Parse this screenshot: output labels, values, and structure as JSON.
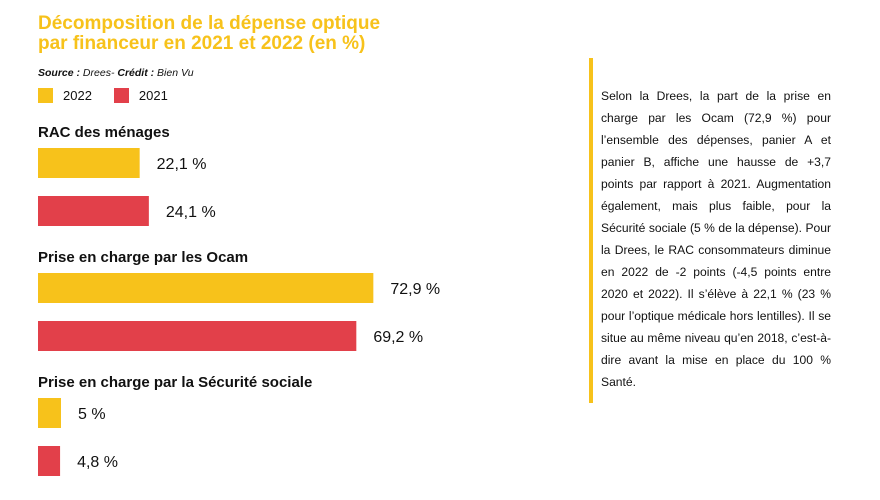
{
  "chart_data": {
    "type": "bar",
    "title_lines": [
      "Décomposition de la dépense optique",
      "par financeur en 2021 et 2022 (en %)"
    ],
    "source_label": "Source :",
    "source_value": " Drees- ",
    "credit_label": "Crédit :",
    "credit_value": " Bien Vu",
    "series": [
      {
        "name": "2022",
        "color": "#f7c21b"
      },
      {
        "name": "2021",
        "color": "#e2404a"
      }
    ],
    "groups": [
      {
        "label": "RAC des ménages",
        "values": [
          22.1,
          24.1
        ],
        "value_labels": [
          "22,1 %",
          "24,1 %"
        ]
      },
      {
        "label": "Prise en charge par les Ocam",
        "values": [
          72.9,
          69.2
        ],
        "value_labels": [
          "72,9 %",
          "69,2 %"
        ]
      },
      {
        "label": "Prise en charge par la Sécurité sociale",
        "values": [
          5,
          4.8
        ],
        "value_labels": [
          "5 %",
          "4,8 %"
        ]
      }
    ]
  },
  "sidebar": {
    "text": "Selon la Drees, la part de la prise en charge par les Ocam (72,9 %) pour l’ensemble des dépenses, panier A et panier B, affiche une hausse de +3,7 points par rapport à 2021. Augmentation également, mais plus faible, pour la Sécurité sociale (5 % de la dépense). Pour la Drees, le RAC consommateurs diminue en 2022 de -2 points (-4,5 points entre 2020 et 2022). Il s’élève à 22,1 % (23 % pour l’optique médicale hors lentilles). Il se situe au même niveau qu’en 2018, c’est-à-dire avant la mise en place du 100 % Santé."
  }
}
